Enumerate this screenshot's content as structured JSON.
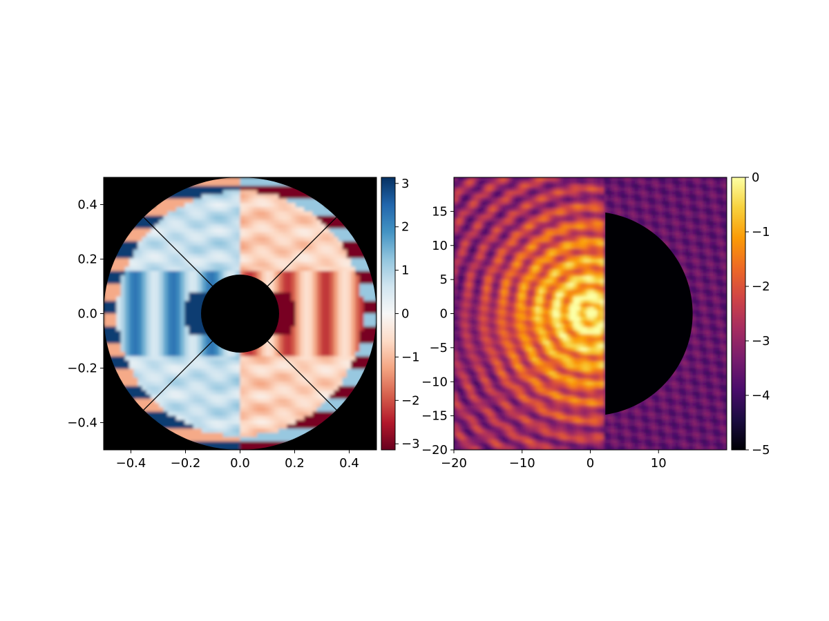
{
  "chart_data": [
    {
      "type": "heatmap",
      "title": "",
      "xlabel": "",
      "ylabel": "",
      "xlim": [
        -0.5,
        0.5
      ],
      "ylim": [
        -0.5,
        0.5
      ],
      "xticks": [
        -0.4,
        -0.2,
        0.0,
        0.2,
        0.4
      ],
      "xtick_labels": [
        "−0.4",
        "−0.2",
        "0.0",
        "0.2",
        "0.4"
      ],
      "yticks": [
        -0.4,
        -0.2,
        0.0,
        0.2,
        0.4
      ],
      "ytick_labels": [
        "−0.4",
        "−0.2",
        "0.0",
        "0.2",
        "0.4"
      ],
      "grid": false,
      "colormap": "RdBu",
      "colormap_colors": [
        "#67001f",
        "#b2182b",
        "#d6604d",
        "#f4a582",
        "#fddbc7",
        "#f7f7f7",
        "#d1e5f0",
        "#92c5de",
        "#4393c3",
        "#2166ac",
        "#053061"
      ],
      "background_color": "#000000",
      "aperture": {
        "outer_radius": 0.5,
        "inner_radius": 0.143,
        "spider_angles_deg": [
          45,
          135,
          225,
          315
        ]
      },
      "colorbar": {
        "range": [
          -3.14,
          3.14
        ],
        "ticks": [
          -3,
          -2,
          -1,
          0,
          1,
          2,
          3
        ],
        "tick_labels": [
          "−3",
          "−2",
          "−1",
          "0",
          "1",
          "2",
          "3"
        ]
      }
    },
    {
      "type": "heatmap",
      "title": "",
      "xlabel": "",
      "ylabel": "",
      "xlim": [
        -20,
        20
      ],
      "ylim": [
        -20,
        20
      ],
      "xticks": [
        -20,
        -10,
        0,
        10
      ],
      "xtick_labels": [
        "−20",
        "−10",
        "0",
        "10"
      ],
      "yticks": [
        -20,
        -15,
        -10,
        -5,
        0,
        5,
        10,
        15
      ],
      "ytick_labels": [
        "−20",
        "−15",
        "−10",
        "−5",
        "0",
        "5",
        "10",
        "15"
      ],
      "grid": false,
      "colormap": "inferno",
      "colormap_colors": [
        "#000004",
        "#1b0c41",
        "#4a0c6b",
        "#781c6d",
        "#a52c60",
        "#cf4446",
        "#ed6925",
        "#fb9b06",
        "#f7d13d",
        "#fcffa4"
      ],
      "dark_hole": {
        "x_min": 2.2,
        "radius": 15
      },
      "colorbar": {
        "range": [
          -5,
          0
        ],
        "ticks": [
          -5,
          -4,
          -3,
          -2,
          -1,
          0
        ],
        "tick_labels": [
          "−5",
          "−4",
          "−3",
          "−2",
          "−1",
          "0"
        ]
      }
    }
  ]
}
